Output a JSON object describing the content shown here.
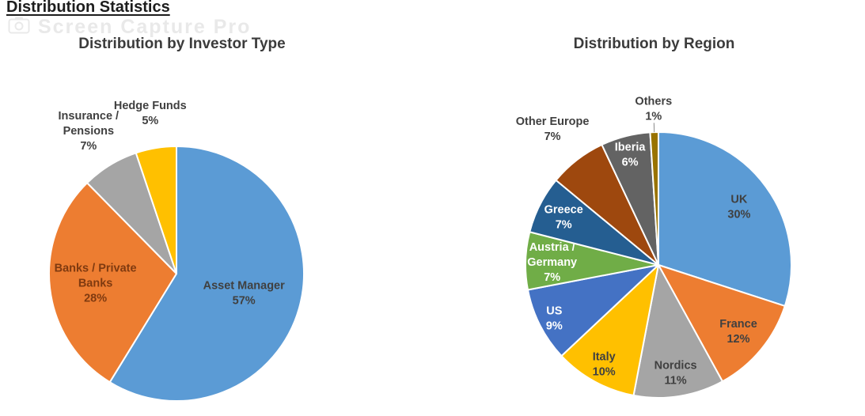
{
  "page": {
    "title": "Distribution Statistics"
  },
  "watermark": {
    "text": "Screen Capture Pro"
  },
  "chart_data": [
    {
      "type": "pie",
      "name": "investor-type",
      "title": "Distribution by Investor Type",
      "legend": "none",
      "units": "percent",
      "slices": [
        {
          "label": "Asset Manager",
          "pct": 57,
          "color": "#5B9BD5",
          "label_lines": [
            "Asset Manager",
            "57%"
          ],
          "label_color": "#404040",
          "label_radius": 0.55
        },
        {
          "label": "Banks / Private Banks",
          "pct": 28,
          "color": "#ED7D31",
          "label_lines": [
            "Banks / Private",
            "Banks",
            "28%"
          ],
          "label_color": "#7F3A10",
          "label_radius": 0.64
        },
        {
          "label": "Insurance / Pensions",
          "pct": 7,
          "color": "#A5A5A5",
          "label_lines": [
            "Insurance /",
            "Pensions",
            "7%"
          ],
          "label_color": "#404040",
          "label_radius": 1.32
        },
        {
          "label": "Hedge Funds",
          "pct": 5,
          "color": "#FFC000",
          "label_lines": [
            "Hedge Funds",
            "5%"
          ],
          "label_color": "#404040",
          "label_radius": 1.28
        }
      ]
    },
    {
      "type": "pie",
      "name": "region",
      "title": "Distribution by Region",
      "legend": "none",
      "units": "percent",
      "slices": [
        {
          "label": "UK",
          "pct": 30,
          "color": "#5B9BD5",
          "label_lines": [
            "UK",
            "30%"
          ],
          "label_color": "#404040",
          "label_radius": 0.75
        },
        {
          "label": "France",
          "pct": 12,
          "color": "#ED7D31",
          "label_lines": [
            "France",
            "12%"
          ],
          "label_color": "#404040",
          "label_radius": 0.78
        },
        {
          "label": "Nordics",
          "pct": 11,
          "color": "#A5A5A5",
          "label_lines": [
            "Nordics",
            "11%"
          ],
          "label_color": "#404040",
          "label_radius": 0.82
        },
        {
          "label": "Italy",
          "pct": 10,
          "color": "#FFC000",
          "label_lines": [
            "Italy",
            "10%"
          ],
          "label_color": "#404040",
          "label_radius": 0.85
        },
        {
          "label": "US",
          "pct": 9,
          "color": "#4472C4",
          "label_lines": [
            "US",
            "9%"
          ],
          "label_color": "#FFFFFF",
          "label_radius": 0.88
        },
        {
          "label": "Austria / Germany",
          "pct": 7,
          "color": "#70AD47",
          "label_lines": [
            "Austria /",
            "Germany",
            "7%"
          ],
          "label_color": "#FFFFFF",
          "label_radius": 0.8
        },
        {
          "label": "Greece",
          "pct": 7,
          "color": "#255E91",
          "label_lines": [
            "Greece",
            "7%"
          ],
          "label_color": "#FFFFFF",
          "label_radius": 0.8
        },
        {
          "label": "Other Europe",
          "pct": 7,
          "color": "#9E480E",
          "label_lines": [
            "Other Europe",
            "7%"
          ],
          "label_color": "#404040",
          "label_radius": 1.3
        },
        {
          "label": "Iberia",
          "pct": 6,
          "color": "#636363",
          "label_lines": [
            "Iberia",
            "6%"
          ],
          "label_color": "#FFFFFF",
          "label_radius": 0.86
        },
        {
          "label": "Others",
          "pct": 1,
          "color": "#997300",
          "label_lines": [
            "Others",
            "1%"
          ],
          "label_color": "#404040",
          "label_radius": 1.18,
          "leader": true
        }
      ]
    }
  ]
}
